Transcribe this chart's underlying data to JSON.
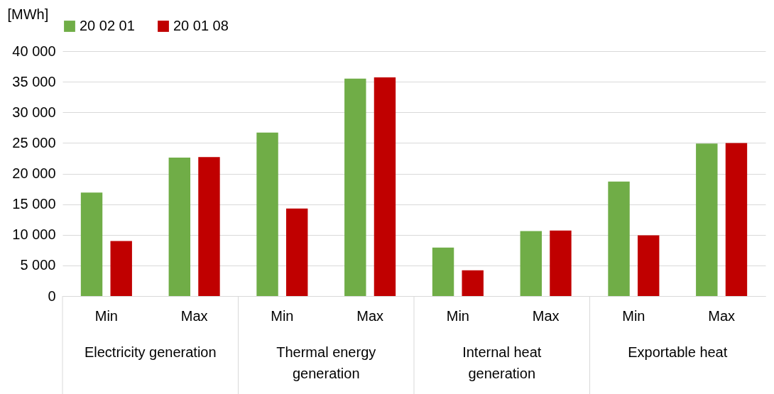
{
  "chart_data": {
    "type": "bar",
    "ylabel": "[MWh]",
    "categories": [
      "Min",
      "Max",
      "Min",
      "Max",
      "Min",
      "Max",
      "Min",
      "Max"
    ],
    "series": [
      {
        "name": "20 02 01",
        "color": "#70ad47",
        "values": [
          16900,
          22600,
          26700,
          35500,
          7900,
          10600,
          18700,
          24900
        ]
      },
      {
        "name": "20 01 08",
        "color": "#c00000",
        "values": [
          9000,
          22700,
          14300,
          35700,
          4200,
          10700,
          9900,
          25000
        ]
      }
    ],
    "annotations": [
      "Electricity generation",
      "Thermal energy generation",
      "Internal heat generation",
      "Exportable heat"
    ],
    "ylim": [
      0,
      40000
    ],
    "yticks": [
      0,
      5000,
      10000,
      15000,
      20000,
      25000,
      30000,
      35000,
      40000
    ],
    "grid": "y",
    "legend": "top"
  }
}
